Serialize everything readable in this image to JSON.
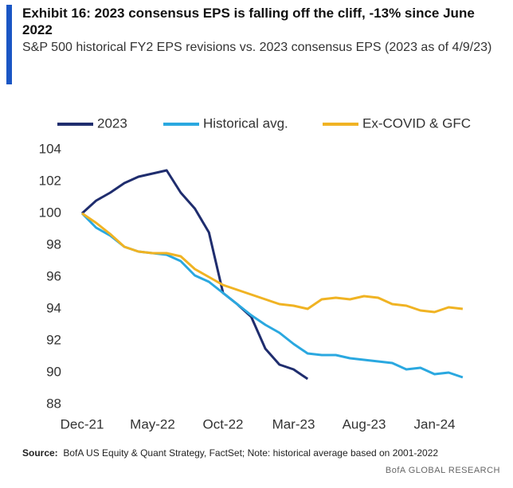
{
  "chart_data": {
    "type": "line",
    "title": "Exhibit 16: 2023  consensus EPS is falling off the cliff, -13% since June 2022",
    "subtitle": "S&P 500 historical FY2 EPS revisions vs. 2023 consensus EPS (2023 as of 4/9/23)",
    "x": [
      "Dec-21",
      "Jan-22",
      "Feb-22",
      "Mar-22",
      "Apr-22",
      "May-22",
      "Jun-22",
      "Jul-22",
      "Aug-22",
      "Sep-22",
      "Oct-22",
      "Nov-22",
      "Dec-22",
      "Jan-23",
      "Feb-23",
      "Mar-23",
      "Apr-23",
      "May-23",
      "Jun-23",
      "Jul-23",
      "Aug-23",
      "Sep-23",
      "Oct-23",
      "Nov-23",
      "Dec-23",
      "Jan-24",
      "Feb-24",
      "Mar-24"
    ],
    "series": [
      {
        "name": "2023",
        "color": "#1f2d6e",
        "values": [
          100,
          100.8,
          101.3,
          101.9,
          102.3,
          102.5,
          102.7,
          101.3,
          100.3,
          98.8,
          95.0,
          94.3,
          93.5,
          91.5,
          90.5,
          90.2,
          89.6,
          null,
          null,
          null,
          null,
          null,
          null,
          null,
          null,
          null,
          null,
          null
        ]
      },
      {
        "name": "Historical avg.",
        "color": "#2aa8e0",
        "values": [
          100,
          99.1,
          98.6,
          97.9,
          97.6,
          97.5,
          97.4,
          97.0,
          96.1,
          95.7,
          95.0,
          94.3,
          93.6,
          93.0,
          92.5,
          91.8,
          91.2,
          91.1,
          91.1,
          90.9,
          90.8,
          90.7,
          90.6,
          90.2,
          90.3,
          89.9,
          90.0,
          89.7
        ]
      },
      {
        "name": "Ex-COVID & GFC",
        "color": "#f0b323",
        "values": [
          100,
          99.4,
          98.7,
          97.9,
          97.6,
          97.5,
          97.5,
          97.3,
          96.5,
          96.0,
          95.5,
          95.2,
          94.9,
          94.6,
          94.3,
          94.2,
          94.0,
          94.6,
          94.7,
          94.6,
          94.8,
          94.7,
          94.3,
          94.2,
          93.9,
          93.8,
          94.1,
          94.0
        ]
      }
    ],
    "xticks": [
      "Dec-21",
      "May-22",
      "Oct-22",
      "Mar-23",
      "Aug-23",
      "Jan-24"
    ],
    "ylim": [
      88,
      104
    ],
    "yticks": [
      88,
      90,
      92,
      94,
      96,
      98,
      100,
      102,
      104
    ],
    "grid": false,
    "legend": "top",
    "source_label": "Source:",
    "source": "BofA US Equity  & Quant Strategy, FactSet; Note: historical average based on 2001-2022",
    "credit": "BofA GLOBAL RESEARCH"
  }
}
